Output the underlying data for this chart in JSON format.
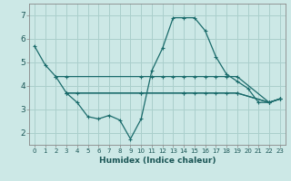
{
  "xlabel": "Humidex (Indice chaleur)",
  "xlim": [
    -0.5,
    23.5
  ],
  "ylim": [
    1.5,
    7.5
  ],
  "yticks": [
    2,
    3,
    4,
    5,
    6,
    7
  ],
  "xticks": [
    0,
    1,
    2,
    3,
    4,
    5,
    6,
    7,
    8,
    9,
    10,
    11,
    12,
    13,
    14,
    15,
    16,
    17,
    18,
    19,
    20,
    21,
    22,
    23
  ],
  "xtick_labels": [
    "0",
    "1",
    "2",
    "3",
    "4",
    "5",
    "6",
    "7",
    "8",
    "9",
    "10",
    "11",
    "12",
    "13",
    "14",
    "15",
    "16",
    "17",
    "18",
    "19",
    "20",
    "21",
    "22",
    "23"
  ],
  "background_color": "#cce8e6",
  "grid_color": "#aacfcc",
  "line_color": "#1a6b6b",
  "lines": [
    {
      "x": [
        0,
        1,
        2,
        3,
        4,
        5,
        6,
        7,
        8,
        9,
        10,
        11,
        12,
        13,
        14,
        15,
        16,
        17,
        18,
        19,
        20,
        21,
        22,
        23
      ],
      "y": [
        5.7,
        4.9,
        4.4,
        3.7,
        3.3,
        2.7,
        2.6,
        2.75,
        2.55,
        1.75,
        2.6,
        4.65,
        5.6,
        6.9,
        6.9,
        6.9,
        6.35,
        5.25,
        4.5,
        4.2,
        3.9,
        3.3,
        3.3,
        3.45
      ]
    },
    {
      "x": [
        2,
        3,
        10,
        11,
        12,
        13,
        14,
        15,
        16,
        17,
        18,
        19,
        22,
        23
      ],
      "y": [
        4.4,
        4.4,
        4.4,
        4.4,
        4.4,
        4.4,
        4.4,
        4.4,
        4.4,
        4.4,
        4.4,
        4.4,
        3.3,
        3.45
      ]
    },
    {
      "x": [
        3,
        4,
        10,
        14,
        15,
        16,
        17,
        18,
        19,
        22,
        23
      ],
      "y": [
        3.7,
        3.7,
        3.7,
        3.7,
        3.7,
        3.7,
        3.7,
        3.7,
        3.7,
        3.3,
        3.45
      ]
    },
    {
      "x": [
        3,
        10,
        14,
        19,
        22,
        23
      ],
      "y": [
        3.7,
        3.7,
        3.7,
        3.7,
        3.3,
        3.45
      ]
    }
  ]
}
